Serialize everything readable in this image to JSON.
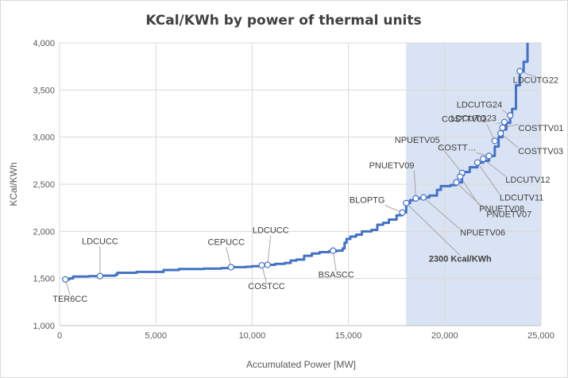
{
  "chart_data": {
    "type": "line",
    "title": "KCal/KWh by power of thermal units",
    "xlabel": "Accumulated Power [MW]",
    "ylabel": "KCal/KWh",
    "xlim": [
      0,
      25000
    ],
    "ylim": [
      1000,
      4000
    ],
    "x_ticks": [
      0,
      5000,
      10000,
      15000,
      20000,
      25000
    ],
    "x_tick_labels": [
      "0",
      "5,000",
      "10,000",
      "15,000",
      "20,000",
      "25,000"
    ],
    "y_ticks": [
      1000,
      1500,
      2000,
      2500,
      3000,
      3500,
      4000
    ],
    "y_tick_labels": [
      "1,000",
      "1,500",
      "2,000",
      "2,500",
      "3,000",
      "3,500",
      "4,000"
    ],
    "grid": true,
    "highlight_region": {
      "x_from": 18000,
      "x_to": 25000,
      "color": "#dae3f3"
    },
    "line_color": "#4472c4",
    "series": [
      {
        "name": "Heat rate curve",
        "points": [
          [
            300,
            1490
          ],
          [
            500,
            1500
          ],
          [
            700,
            1520
          ],
          [
            1500,
            1525
          ],
          [
            2200,
            1530
          ],
          [
            2900,
            1540
          ],
          [
            3000,
            1560
          ],
          [
            4000,
            1570
          ],
          [
            5300,
            1570
          ],
          [
            5400,
            1590
          ],
          [
            6200,
            1600
          ],
          [
            7500,
            1605
          ],
          [
            8400,
            1610
          ],
          [
            9000,
            1620
          ],
          [
            9700,
            1625
          ],
          [
            10000,
            1630
          ],
          [
            10400,
            1640
          ],
          [
            10800,
            1645
          ],
          [
            11200,
            1655
          ],
          [
            11700,
            1665
          ],
          [
            12000,
            1690
          ],
          [
            12300,
            1700
          ],
          [
            12700,
            1740
          ],
          [
            13100,
            1765
          ],
          [
            13500,
            1780
          ],
          [
            14000,
            1790
          ],
          [
            14400,
            1795
          ],
          [
            14700,
            1820
          ],
          [
            14800,
            1880
          ],
          [
            14900,
            1920
          ],
          [
            15100,
            1945
          ],
          [
            15400,
            1965
          ],
          [
            15700,
            2000
          ],
          [
            16200,
            2015
          ],
          [
            16500,
            2070
          ],
          [
            16800,
            2090
          ],
          [
            17100,
            2125
          ],
          [
            17500,
            2170
          ],
          [
            17800,
            2200
          ],
          [
            18000,
            2300
          ],
          [
            18200,
            2330
          ],
          [
            18500,
            2350
          ],
          [
            18900,
            2360
          ],
          [
            19200,
            2380
          ],
          [
            19600,
            2440
          ],
          [
            19800,
            2480
          ],
          [
            20300,
            2490
          ],
          [
            20600,
            2520
          ],
          [
            20900,
            2600
          ],
          [
            21000,
            2630
          ],
          [
            21300,
            2680
          ],
          [
            21700,
            2730
          ],
          [
            22000,
            2750
          ],
          [
            22300,
            2800
          ],
          [
            22600,
            2900
          ],
          [
            22800,
            3000
          ],
          [
            23000,
            3080
          ],
          [
            23200,
            3150
          ],
          [
            23400,
            3230
          ],
          [
            23500,
            3300
          ],
          [
            23700,
            3550
          ],
          [
            23900,
            3700
          ],
          [
            24100,
            3800
          ],
          [
            24300,
            4000
          ]
        ]
      }
    ],
    "annotations": [
      {
        "label": "TER6CC",
        "x": 300,
        "y": 1490,
        "bold": false,
        "side": "below"
      },
      {
        "label": "LDCUCC",
        "x": 2100,
        "y": 1525,
        "bold": false,
        "side": "above"
      },
      {
        "label": "CEPUCC",
        "x": 8900,
        "y": 1620,
        "bold": false,
        "side": "above"
      },
      {
        "label": "COSTCC",
        "x": 10500,
        "y": 1640,
        "bold": false,
        "side": "below"
      },
      {
        "label": "LDCUCC",
        "x": 10800,
        "y": 1645,
        "bold": false,
        "side": "above"
      },
      {
        "label": "BSASCC",
        "x": 14200,
        "y": 1795,
        "bold": false,
        "side": "below"
      },
      {
        "label": "BLOPTG",
        "x": 17800,
        "y": 2200,
        "bold": false,
        "side": "left"
      },
      {
        "label": "2300 Kcal/KWh",
        "x": 18000,
        "y": 2300,
        "bold": true,
        "side": "below"
      },
      {
        "label": "NPUETV06",
        "x": 18900,
        "y": 2360,
        "bold": false,
        "side": "below"
      },
      {
        "label": "PNUETV09",
        "x": 18500,
        "y": 2350,
        "bold": false,
        "side": "left"
      },
      {
        "label": "NPUETV05",
        "x": 20900,
        "y": 2620,
        "bold": false,
        "side": "left"
      },
      {
        "label": "PNUETV07",
        "x": 20600,
        "y": 2520,
        "bold": false,
        "side": "right"
      },
      {
        "label": "PNUETV08",
        "x": 20800,
        "y": 2580,
        "bold": false,
        "side": "right"
      },
      {
        "label": "LDCUTV11",
        "x": 21700,
        "y": 2730,
        "bold": false,
        "side": "right"
      },
      {
        "label": "LDCUTV12",
        "x": 22000,
        "y": 2770,
        "bold": false,
        "side": "right"
      },
      {
        "label": "COSTT…",
        "x": 22300,
        "y": 2800,
        "bold": false,
        "side": "left"
      },
      {
        "label": "COSTTV02",
        "x": 22600,
        "y": 2960,
        "bold": false,
        "side": "left"
      },
      {
        "label": "COSTTV03",
        "x": 22900,
        "y": 3040,
        "bold": false,
        "side": "right"
      },
      {
        "label": "COSTTV01",
        "x": 23000,
        "y": 3100,
        "bold": false,
        "side": "right"
      },
      {
        "label": "LDCUTG23",
        "x": 23100,
        "y": 3160,
        "bold": false,
        "side": "left"
      },
      {
        "label": "LDCUTG24",
        "x": 23400,
        "y": 3230,
        "bold": false,
        "side": "left"
      },
      {
        "label": "LDCUTG22",
        "x": 23900,
        "y": 3700,
        "bold": false,
        "side": "below"
      }
    ]
  }
}
